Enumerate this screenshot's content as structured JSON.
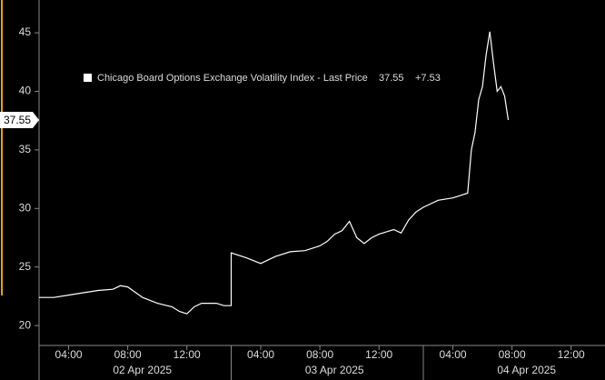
{
  "chart_data": {
    "type": "line",
    "series": [
      {
        "name": "Chicago Board Options Exchange Volatility Index - Last Price",
        "color": "#ffffff",
        "x": [
          "2025-04-02 02:00",
          "2025-04-02 03:00",
          "2025-04-02 04:00",
          "2025-04-02 05:00",
          "2025-04-02 06:00",
          "2025-04-02 07:00",
          "2025-04-02 07:30",
          "2025-04-02 08:00",
          "2025-04-02 09:00",
          "2025-04-02 10:00",
          "2025-04-02 11:00",
          "2025-04-02 11:30",
          "2025-04-02 12:00",
          "2025-04-02 12:30",
          "2025-04-02 13:00",
          "2025-04-02 14:00",
          "2025-04-02 14:30",
          "2025-04-02 15:00",
          "2025-04-03 02:00",
          "2025-04-03 03:00",
          "2025-04-03 04:00",
          "2025-04-03 05:00",
          "2025-04-03 06:00",
          "2025-04-03 07:00",
          "2025-04-03 08:00",
          "2025-04-03 08:30",
          "2025-04-03 09:00",
          "2025-04-03 09:30",
          "2025-04-03 10:00",
          "2025-04-03 10:30",
          "2025-04-03 11:00",
          "2025-04-03 11:30",
          "2025-04-03 12:00",
          "2025-04-03 13:00",
          "2025-04-03 13:30",
          "2025-04-03 14:00",
          "2025-04-03 14:30",
          "2025-04-03 15:00",
          "2025-04-04 02:00",
          "2025-04-04 03:00",
          "2025-04-04 04:00",
          "2025-04-04 05:00",
          "2025-04-04 05:15",
          "2025-04-04 05:30",
          "2025-04-04 05:45",
          "2025-04-04 06:00",
          "2025-04-04 06:15",
          "2025-04-04 06:30",
          "2025-04-04 06:45",
          "2025-04-04 07:00",
          "2025-04-04 07:15",
          "2025-04-04 07:30",
          "2025-04-04 07:45"
        ],
        "values": [
          22.4,
          22.4,
          22.6,
          22.8,
          23.0,
          23.1,
          23.4,
          23.3,
          22.4,
          21.9,
          21.6,
          21.2,
          21.0,
          21.6,
          21.9,
          21.9,
          21.7,
          21.7,
          26.2,
          25.8,
          25.3,
          25.9,
          26.3,
          26.4,
          26.8,
          27.2,
          27.8,
          28.1,
          28.9,
          27.5,
          27.0,
          27.5,
          27.8,
          28.2,
          27.9,
          29.0,
          29.7,
          30.1,
          30.1,
          30.7,
          30.9,
          31.3,
          35.0,
          36.5,
          39.3,
          40.4,
          43.1,
          45.1,
          42.4,
          40.0,
          40.4,
          39.6,
          37.55
        ]
      }
    ],
    "last_price": 37.55,
    "change": "+7.53",
    "xlim": [
      "2025-04-02 02:00",
      "2025-04-04 15:00"
    ],
    "xticks": [
      {
        "value": "2025-04-02 04:00",
        "label": "04:00"
      },
      {
        "value": "2025-04-02 08:00",
        "label": "08:00"
      },
      {
        "value": "2025-04-02 12:00",
        "label": "12:00"
      },
      {
        "value": "2025-04-03 04:00",
        "label": "04:00"
      },
      {
        "value": "2025-04-03 08:00",
        "label": "08:00"
      },
      {
        "value": "2025-04-03 12:00",
        "label": "12:00"
      },
      {
        "value": "2025-04-04 04:00",
        "label": "04:00"
      },
      {
        "value": "2025-04-04 08:00",
        "label": "08:00"
      },
      {
        "value": "2025-04-04 12:00",
        "label": "12:00"
      }
    ],
    "day_labels": [
      {
        "value": "2025-04-02",
        "label": "02 Apr 2025"
      },
      {
        "value": "2025-04-03",
        "label": "03 Apr 2025"
      },
      {
        "value": "2025-04-04",
        "label": "04 Apr 2025"
      }
    ],
    "ylim": [
      18.3,
      47.8
    ],
    "yticks": [
      20,
      25,
      30,
      35,
      40,
      45
    ]
  }
}
